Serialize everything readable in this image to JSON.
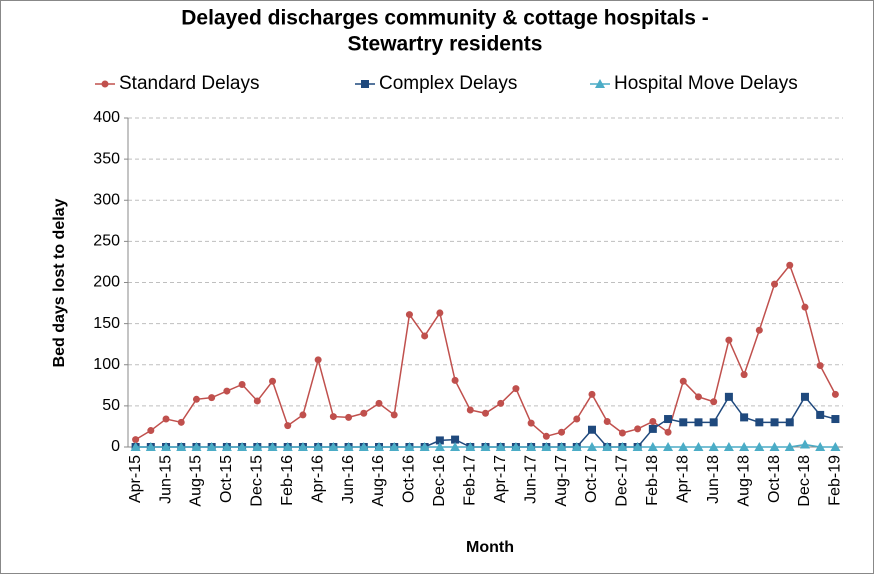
{
  "chart_data": {
    "type": "line",
    "title": "Delayed discharges community & cottage hospitals - Stewartry residents",
    "title_lines": [
      "Delayed discharges community & cottage hospitals -",
      "Stewartry residents"
    ],
    "x_label": "Month",
    "y_label": "Bed days lost to delay",
    "categories": [
      "Apr-15",
      null,
      "Jun-15",
      null,
      "Aug-15",
      null,
      "Oct-15",
      null,
      "Dec-15",
      null,
      "Feb-16",
      null,
      "Apr-16",
      null,
      "Jun-16",
      null,
      "Aug-16",
      null,
      "Oct-16",
      null,
      "Dec-16",
      null,
      "Feb-17",
      null,
      "Apr-17",
      null,
      "Jun-17",
      null,
      "Aug-17",
      null,
      "Oct-17",
      null,
      "Dec-17",
      null,
      "Feb-18",
      null,
      "Apr-18",
      null,
      "Jun-18",
      null,
      "Aug-18",
      null,
      "Oct-18",
      null,
      "Dec-18",
      null,
      "Feb-19"
    ],
    "series": [
      {
        "name": "Standard Delays",
        "color": "#c0504d",
        "marker": "circle",
        "values": [
          9,
          20,
          34,
          30,
          58,
          60,
          68,
          76,
          56,
          80,
          26,
          39,
          106,
          37,
          36,
          41,
          53,
          39,
          161,
          135,
          163,
          81,
          45,
          41,
          53,
          71,
          29,
          13,
          18,
          34,
          64,
          31,
          17,
          22,
          31,
          18,
          80,
          61,
          55,
          130,
          88,
          142,
          198,
          221,
          170,
          99,
          64
        ]
      },
      {
        "name": "Complex Delays",
        "color": "#1f497d",
        "marker": "square",
        "values": [
          0,
          0,
          0,
          0,
          0,
          0,
          0,
          0,
          0,
          0,
          0,
          0,
          0,
          0,
          0,
          0,
          0,
          0,
          0,
          0,
          8,
          9,
          0,
          0,
          0,
          0,
          0,
          0,
          0,
          0,
          21,
          0,
          0,
          0,
          22,
          34,
          30,
          30,
          30,
          61,
          36,
          30,
          30,
          30,
          61,
          39,
          34
        ]
      },
      {
        "name": "Hospital Move Delays",
        "color": "#4bacc6",
        "marker": "triangle",
        "values": [
          0,
          0,
          0,
          0,
          0,
          0,
          0,
          0,
          0,
          0,
          0,
          0,
          0,
          0,
          0,
          0,
          0,
          0,
          0,
          0,
          0,
          0,
          0,
          0,
          0,
          0,
          0,
          0,
          0,
          0,
          0,
          0,
          0,
          0,
          0,
          0,
          0,
          0,
          0,
          0,
          0,
          0,
          0,
          0,
          3,
          0,
          0
        ]
      }
    ],
    "ylim": [
      0,
      400
    ],
    "yticks": [
      0,
      50,
      100,
      150,
      200,
      250,
      300,
      350,
      400
    ],
    "grid": true,
    "legend": "top"
  }
}
